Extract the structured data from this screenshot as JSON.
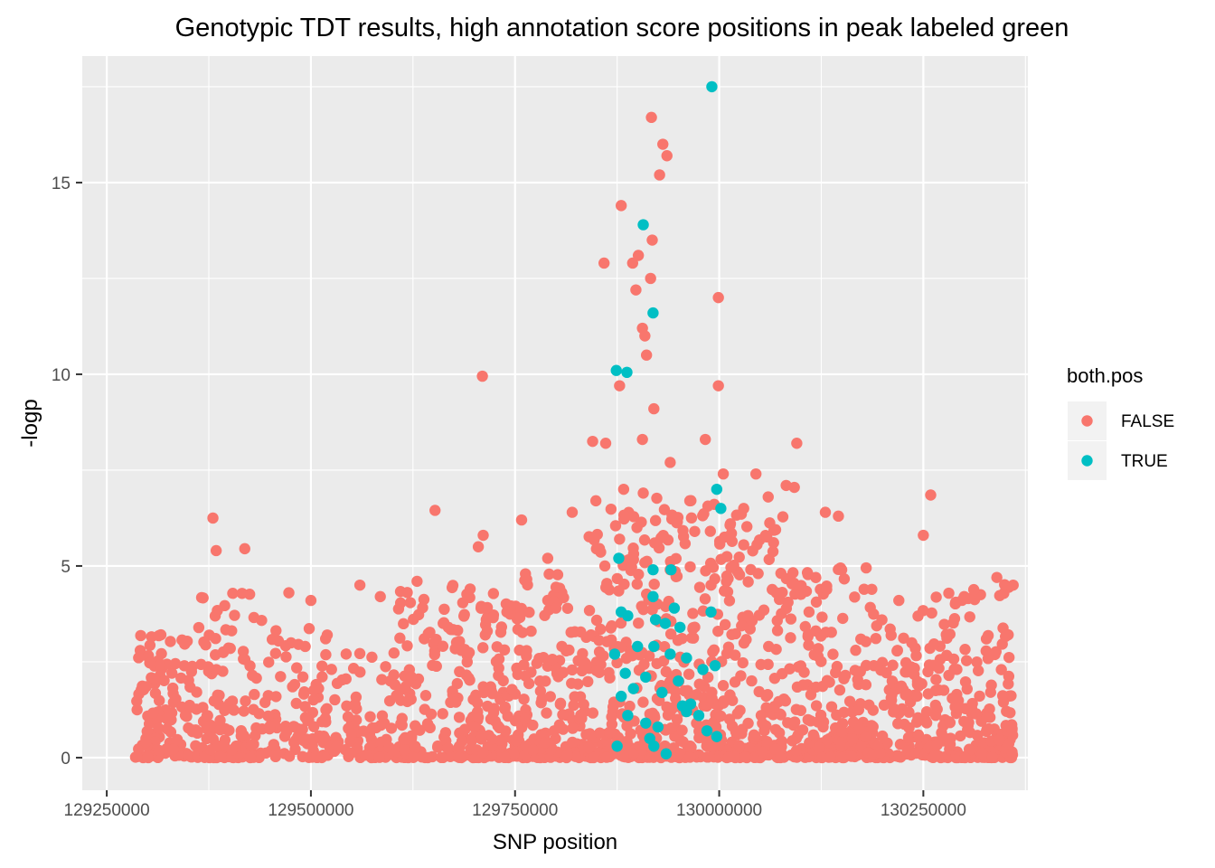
{
  "chart_data": {
    "type": "scatter",
    "title": "Genotypic TDT results, high annotation score positions in peak labeled green",
    "xlabel": "SNP position",
    "ylabel": "-logp",
    "xlim": [
      129220000,
      130378000
    ],
    "ylim": [
      -0.85,
      18.3
    ],
    "x_ticks": [
      129250000,
      129500000,
      129750000,
      130000000,
      130250000
    ],
    "x_tick_labels": [
      "129250000",
      "129500000",
      "129750000",
      "130000000",
      "130250000"
    ],
    "y_ticks": [
      0,
      5,
      10,
      15
    ],
    "y_tick_labels": [
      "0",
      "5",
      "10",
      "15"
    ],
    "grid": true,
    "legend": {
      "title": "both.pos",
      "placement": "right",
      "entries": [
        {
          "label": "FALSE",
          "color": "#F8766D"
        },
        {
          "label": "TRUE",
          "color": "#00BFC4"
        }
      ]
    },
    "series": [
      {
        "name": "FALSE",
        "color": "#F8766D",
        "points": [
          [
            129931000,
            16.0
          ],
          [
            129936000,
            15.7
          ],
          [
            129917000,
            16.7
          ],
          [
            129927000,
            15.2
          ],
          [
            129880000,
            14.4
          ],
          [
            129901000,
            13.1
          ],
          [
            129894000,
            12.9
          ],
          [
            129918000,
            13.5
          ],
          [
            129916000,
            12.5
          ],
          [
            129898000,
            12.2
          ],
          [
            129859000,
            12.9
          ],
          [
            129999000,
            12.0
          ],
          [
            129906000,
            11.2
          ],
          [
            129909000,
            11.0
          ],
          [
            129911000,
            10.5
          ],
          [
            129710000,
            9.95
          ],
          [
            129878000,
            9.7
          ],
          [
            129920000,
            9.1
          ],
          [
            129999000,
            9.7
          ],
          [
            129845000,
            8.25
          ],
          [
            129861000,
            8.2
          ],
          [
            129906000,
            8.3
          ],
          [
            129983000,
            8.3
          ],
          [
            130095000,
            8.2
          ],
          [
            129380000,
            6.25
          ],
          [
            129652000,
            6.45
          ],
          [
            129758000,
            6.2
          ],
          [
            130259000,
            6.85
          ],
          [
            129384000,
            5.4
          ],
          [
            129419000,
            5.45
          ],
          [
            129940000,
            7.7
          ],
          [
            130005000,
            7.4
          ],
          [
            130045000,
            7.4
          ],
          [
            130082000,
            7.1
          ],
          [
            130092000,
            7.05
          ],
          [
            129849000,
            6.7
          ],
          [
            129820000,
            6.4
          ],
          [
            129883000,
            7.0
          ],
          [
            129907000,
            6.9
          ],
          [
            129964000,
            6.7
          ],
          [
            130030000,
            6.5
          ],
          [
            130060000,
            6.8
          ],
          [
            130130000,
            6.4
          ],
          [
            130146000,
            6.3
          ],
          [
            130250000,
            5.8
          ],
          [
            129711000,
            5.8
          ],
          [
            129705000,
            5.5
          ],
          [
            129878000,
            5.7
          ],
          [
            129921000,
            5.6
          ],
          [
            129970000,
            5.9
          ],
          [
            130015000,
            5.85
          ],
          [
            129860000,
            5.0
          ],
          [
            129790000,
            5.2
          ],
          [
            129940000,
            4.9
          ],
          [
            129990000,
            4.5
          ],
          [
            130150000,
            4.9
          ],
          [
            130180000,
            4.95
          ],
          [
            129560000,
            4.5
          ],
          [
            129630000,
            4.6
          ],
          [
            129695000,
            4.4
          ],
          [
            130340000,
            4.7
          ],
          [
            130360000,
            4.5
          ],
          [
            129473000,
            4.3
          ],
          [
            129500000,
            4.1
          ],
          [
            129585000,
            4.2
          ],
          [
            129520000,
            3.2
          ],
          [
            129662000,
            3.5
          ],
          [
            129740000,
            3.8
          ],
          [
            129800000,
            3.9
          ],
          [
            130070000,
            4.3
          ],
          [
            130110000,
            3.8
          ],
          [
            130220000,
            4.1
          ],
          [
            130300000,
            4.2
          ]
        ],
        "cloud": [
          {
            "x0": 129285000,
            "x1": 129360000,
            "n": 120,
            "ymax": 3.3
          },
          {
            "x0": 129360000,
            "x1": 129440000,
            "n": 120,
            "ymax": 4.4
          },
          {
            "x0": 129440000,
            "x1": 129520000,
            "n": 90,
            "ymax": 3.4
          },
          {
            "x0": 129520000,
            "x1": 129600000,
            "n": 70,
            "ymax": 2.8
          },
          {
            "x0": 129600000,
            "x1": 129680000,
            "n": 110,
            "ymax": 4.5
          },
          {
            "x0": 129680000,
            "x1": 129760000,
            "n": 160,
            "ymax": 4.3
          },
          {
            "x0": 129760000,
            "x1": 129840000,
            "n": 140,
            "ymax": 4.8
          },
          {
            "x0": 129840000,
            "x1": 129920000,
            "n": 170,
            "ymax": 6.5
          },
          {
            "x0": 129920000,
            "x1": 130000000,
            "n": 170,
            "ymax": 6.8
          },
          {
            "x0": 130000000,
            "x1": 130080000,
            "n": 170,
            "ymax": 6.5
          },
          {
            "x0": 130080000,
            "x1": 130160000,
            "n": 130,
            "ymax": 5.0
          },
          {
            "x0": 130160000,
            "x1": 130240000,
            "n": 140,
            "ymax": 4.5
          },
          {
            "x0": 130240000,
            "x1": 130300000,
            "n": 120,
            "ymax": 4.4
          },
          {
            "x0": 130300000,
            "x1": 130360000,
            "n": 120,
            "ymax": 4.6
          }
        ]
      },
      {
        "name": "TRUE",
        "color": "#00BFC4",
        "points": [
          [
            129991000,
            17.5
          ],
          [
            129907000,
            13.9
          ],
          [
            129919000,
            11.6
          ],
          [
            129874000,
            10.1
          ],
          [
            129887000,
            10.05
          ],
          [
            129997000,
            7.0
          ],
          [
            130002000,
            6.5
          ],
          [
            129877000,
            5.2
          ],
          [
            129919000,
            4.9
          ],
          [
            129941000,
            4.9
          ],
          [
            129919000,
            4.2
          ],
          [
            129945000,
            3.9
          ],
          [
            129880000,
            3.8
          ],
          [
            129888000,
            3.7
          ],
          [
            129922000,
            3.6
          ],
          [
            129934000,
            3.5
          ],
          [
            129952000,
            3.4
          ],
          [
            129990000,
            3.8
          ],
          [
            129900000,
            2.9
          ],
          [
            129872000,
            2.7
          ],
          [
            129920000,
            2.9
          ],
          [
            129940000,
            2.7
          ],
          [
            129960000,
            2.6
          ],
          [
            129885000,
            2.2
          ],
          [
            129910000,
            2.1
          ],
          [
            129950000,
            2.0
          ],
          [
            129980000,
            2.3
          ],
          [
            129995000,
            2.4
          ],
          [
            129880000,
            1.6
          ],
          [
            129895000,
            1.8
          ],
          [
            129930000,
            1.7
          ],
          [
            129955000,
            1.35
          ],
          [
            129965000,
            1.4
          ],
          [
            129975000,
            1.1
          ],
          [
            129888000,
            1.1
          ],
          [
            129910000,
            0.9
          ],
          [
            129925000,
            0.8
          ],
          [
            129960000,
            1.2
          ],
          [
            129875000,
            0.3
          ],
          [
            129915000,
            0.5
          ],
          [
            129935000,
            0.1
          ],
          [
            129920000,
            0.3
          ],
          [
            129985000,
            0.7
          ],
          [
            129997000,
            0.55
          ]
        ]
      }
    ]
  }
}
